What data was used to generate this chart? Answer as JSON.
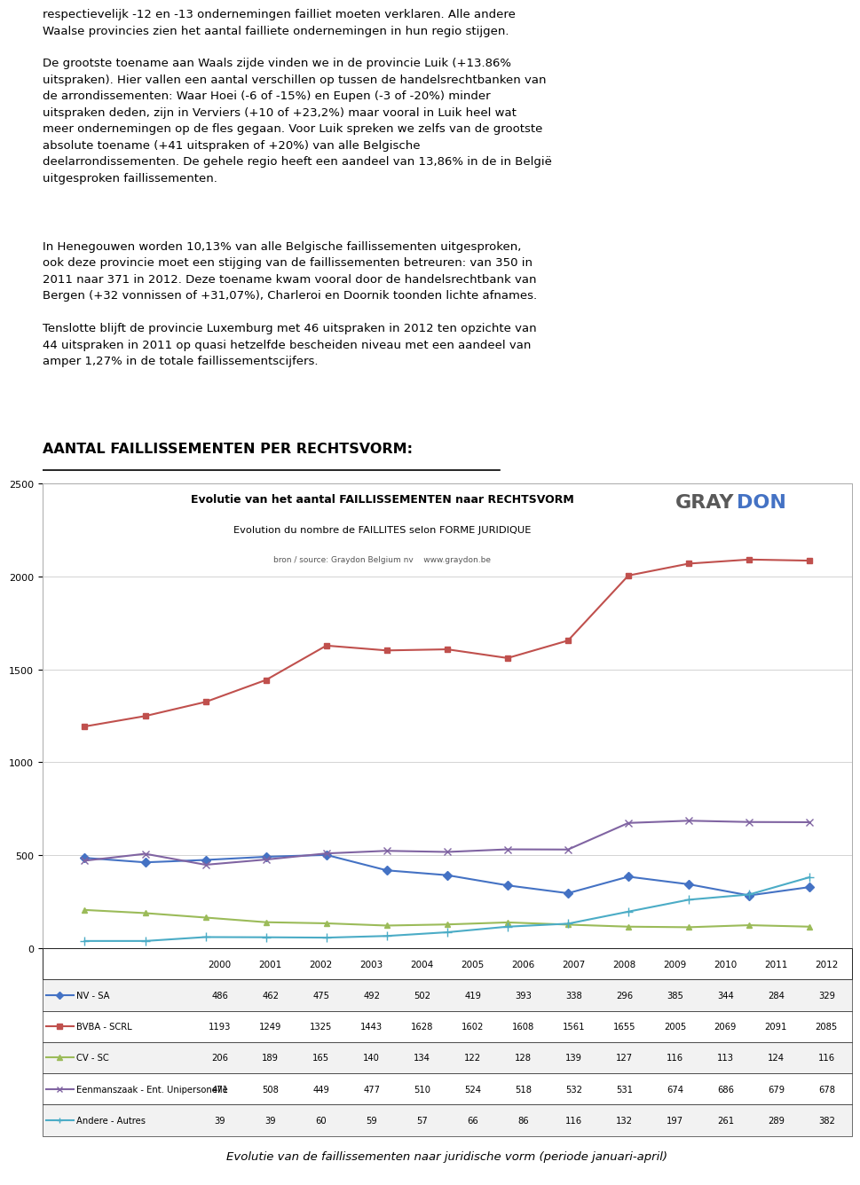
{
  "title1": "Evolutie van het aantal FAILLISSEMENTEN naar RECHTSVORM",
  "title2": "Evolution du nombre de FAILLITES selon FORME JURIDIQUE",
  "title3": "bron / source: Graydon Belgium nv    www.graydon.be",
  "years": [
    2000,
    2001,
    2002,
    2003,
    2004,
    2005,
    2006,
    2007,
    2008,
    2009,
    2010,
    2011,
    2012
  ],
  "series_order": [
    "NV - SA",
    "BVBA - SCRL",
    "CV - SC",
    "Eenmanszaak - Ent. Unipersonelle",
    "Andere - Autres"
  ],
  "series": {
    "NV - SA": {
      "values": [
        486,
        462,
        475,
        492,
        502,
        419,
        393,
        338,
        296,
        385,
        344,
        284,
        329
      ],
      "color": "#4472C4",
      "marker": "D",
      "linewidth": 1.5,
      "markersize": 5
    },
    "BVBA - SCRL": {
      "values": [
        1193,
        1249,
        1325,
        1443,
        1628,
        1602,
        1608,
        1561,
        1655,
        2005,
        2069,
        2091,
        2085
      ],
      "color": "#C0504D",
      "marker": "s",
      "linewidth": 1.5,
      "markersize": 5
    },
    "CV - SC": {
      "values": [
        206,
        189,
        165,
        140,
        134,
        122,
        128,
        139,
        127,
        116,
        113,
        124,
        116
      ],
      "color": "#9BBB59",
      "marker": "^",
      "linewidth": 1.5,
      "markersize": 5
    },
    "Eenmanszaak - Ent. Unipersonelle": {
      "values": [
        471,
        508,
        449,
        477,
        510,
        524,
        518,
        532,
        531,
        674,
        686,
        679,
        678
      ],
      "color": "#8064A2",
      "marker": "x",
      "linewidth": 1.5,
      "markersize": 6
    },
    "Andere - Autres": {
      "values": [
        39,
        39,
        60,
        59,
        57,
        66,
        86,
        116,
        132,
        197,
        261,
        289,
        382
      ],
      "color": "#4BACC6",
      "marker": "+",
      "linewidth": 1.5,
      "markersize": 7
    }
  },
  "ylim": [
    0,
    2500
  ],
  "yticks": [
    0,
    500,
    1000,
    1500,
    2000,
    2500
  ],
  "heading_text": "AANTAL FAILLISSEMENTEN PER RECHTSVORM:",
  "caption": "Evolutie van de faillissementen naar juridische vorm (periode januari-april)",
  "background_color": "#ffffff",
  "graydon_gray": "#595959",
  "graydon_blue": "#4472C4",
  "text_line1": "respectievelijk -12 en -13 ondernemingen failliet moeten verklaren. Alle andere\nWaalse provincies zien het aantal failliete ondernemingen in hun regio stijgen.",
  "text_luik": "De grootste toename aan Waals zijde vinden we in de provincie Luik (+13.86%\nuitspraken). Hier vallen een aantal verschillen op tussen de handelsrechtbanken van\nde arrondissementen: Waar Hoei (-6 of -15%) en Eupen (-3 of -20%) minder\nuitspraken deden, zijn in Verviers (+10 of +23,2%) maar vooral in Luik heel wat\nmeer ondernemingen op de fles gegaan. Voor Luik spreken we zelfs van de grootste\nabsolute toename (+41 uitspraken of +20%) van alle Belgische\ndeelarrondissementen. De gehele regio heeft een aandeel van 13,86% in de in België\nuitgesproken faillissementen.",
  "text_henegouwen": "In Henegouwen worden 10,13% van alle Belgische faillissementen uitgesproken,\nook deze provincie moet een stijging van de faillissementen betreuren: van 350 in\n2011 naar 371 in 2012. Deze toename kwam vooral door de handelsrechtbank van\nBergen (+32 vonnissen of +31,07%), Charleroi en Doornik toonden lichte afnames.",
  "text_luxemburg": "Tenslotte blijft de provincie Luxemburg met 46 uitspraken in 2012 ten opzichte van\n44 uitspraken in 2011 op quasi hetzelfde bescheiden niveau met een aandeel van\namper 1,27% in de totale faillissementscijfers."
}
